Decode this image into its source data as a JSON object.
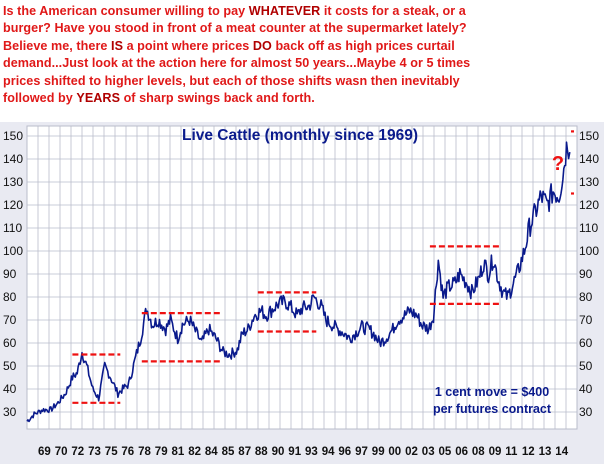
{
  "headline": {
    "lines": [
      [
        {
          "t": "Is the American consumer willing to pay "
        },
        {
          "t": "WHATEVER",
          "b": true
        },
        {
          "t": " it costs for a steak, or a"
        }
      ],
      [
        {
          "t": "burger? Have you stood in front of a meat counter at the supermarket lately?"
        }
      ],
      [
        {
          "t": "Believe me, there "
        },
        {
          "t": "IS",
          "b": true
        },
        {
          "t": " a point where prices "
        },
        {
          "t": "DO",
          "b": true
        },
        {
          "t": " back off as high prices curtail"
        }
      ],
      [
        {
          "t": "demand...Just look at the action here for almost 50 years...Maybe 4 or 5 times"
        }
      ],
      [
        {
          "t": "prices shifted to higher levels, but each of those shifts wasn then inevitably"
        }
      ],
      [
        {
          "t": "followed by "
        },
        {
          "t": "YEARS",
          "b": true
        },
        {
          "t": " of sharp swings back and forth."
        }
      ]
    ]
  },
  "colors": {
    "text": "#e01818",
    "series": "#0a1a8c",
    "range_lines": "#ee1111",
    "grid": "#b9bccb",
    "background": "#e9eaf2"
  },
  "chart_data": {
    "type": "line",
    "title": "Live Cattle (monthly since 1969)",
    "x_tick_labels": [
      "69",
      "70",
      "72",
      "73",
      "75",
      "76",
      "78",
      "79",
      "81",
      "82",
      "84",
      "85",
      "87",
      "88",
      "90",
      "91",
      "93",
      "94",
      "96",
      "97",
      "99",
      "00",
      "02",
      "03",
      "05",
      "06",
      "08",
      "09",
      "11",
      "12",
      "13",
      "14"
    ],
    "y_ticks": [
      30,
      40,
      50,
      60,
      70,
      80,
      90,
      100,
      110,
      120,
      130,
      140,
      150
    ],
    "ylim": [
      25,
      155
    ],
    "xlim": [
      1969,
      2015
    ],
    "grid": true,
    "annotation": {
      "line1": "1 cent move = $400",
      "line2": "per futures contract"
    },
    "question_mark": "?",
    "series": [
      {
        "anchors": [
          [
            1969.0,
            26
          ],
          [
            1969.6,
            29
          ],
          [
            1970.3,
            31
          ],
          [
            1971.0,
            31
          ],
          [
            1971.6,
            34
          ],
          [
            1972.2,
            38
          ],
          [
            1972.8,
            45
          ],
          [
            1973.2,
            47
          ],
          [
            1973.6,
            56
          ],
          [
            1974.0,
            50
          ],
          [
            1974.5,
            40
          ],
          [
            1975.0,
            36
          ],
          [
            1975.5,
            50
          ],
          [
            1976.0,
            45
          ],
          [
            1976.6,
            38
          ],
          [
            1977.0,
            40
          ],
          [
            1977.5,
            42
          ],
          [
            1978.0,
            52
          ],
          [
            1978.5,
            62
          ],
          [
            1979.0,
            75
          ],
          [
            1979.5,
            68
          ],
          [
            1980.0,
            70
          ],
          [
            1980.6,
            66
          ],
          [
            1981.0,
            70
          ],
          [
            1981.6,
            62
          ],
          [
            1982.0,
            68
          ],
          [
            1982.6,
            70
          ],
          [
            1983.0,
            66
          ],
          [
            1983.6,
            60
          ],
          [
            1984.2,
            66
          ],
          [
            1984.8,
            62
          ],
          [
            1985.4,
            56
          ],
          [
            1986.0,
            55
          ],
          [
            1986.6,
            57
          ],
          [
            1987.0,
            64
          ],
          [
            1987.5,
            66
          ],
          [
            1988.0,
            72
          ],
          [
            1988.6,
            74
          ],
          [
            1989.0,
            72
          ],
          [
            1989.6,
            75
          ],
          [
            1990.0,
            77
          ],
          [
            1990.6,
            78
          ],
          [
            1991.0,
            76
          ],
          [
            1991.6,
            72
          ],
          [
            1992.0,
            75
          ],
          [
            1992.6,
            76
          ],
          [
            1993.0,
            80
          ],
          [
            1993.6,
            76
          ],
          [
            1994.0,
            70
          ],
          [
            1994.5,
            68
          ],
          [
            1995.0,
            66
          ],
          [
            1995.6,
            64
          ],
          [
            1996.0,
            62
          ],
          [
            1996.6,
            65
          ],
          [
            1997.0,
            67
          ],
          [
            1997.6,
            66
          ],
          [
            1998.0,
            64
          ],
          [
            1998.5,
            60
          ],
          [
            1999.0,
            62
          ],
          [
            1999.6,
            66
          ],
          [
            2000.0,
            70
          ],
          [
            2000.6,
            72
          ],
          [
            2001.0,
            74
          ],
          [
            2001.6,
            72
          ],
          [
            2002.0,
            68
          ],
          [
            2002.6,
            66
          ],
          [
            2003.0,
            72
          ],
          [
            2003.4,
            96
          ],
          [
            2003.8,
            80
          ],
          [
            2004.2,
            84
          ],
          [
            2004.8,
            86
          ],
          [
            2005.2,
            90
          ],
          [
            2005.8,
            86
          ],
          [
            2006.2,
            82
          ],
          [
            2006.8,
            88
          ],
          [
            2007.2,
            95
          ],
          [
            2007.6,
            90
          ],
          [
            2008.0,
            97
          ],
          [
            2008.4,
            88
          ],
          [
            2008.8,
            82
          ],
          [
            2009.2,
            80
          ],
          [
            2009.6,
            85
          ],
          [
            2010.0,
            90
          ],
          [
            2010.6,
            100
          ],
          [
            2011.0,
            110
          ],
          [
            2011.6,
            118
          ],
          [
            2012.0,
            124
          ],
          [
            2012.5,
            120
          ],
          [
            2013.0,
            126
          ],
          [
            2013.5,
            124
          ],
          [
            2013.9,
            136
          ],
          [
            2014.2,
            148
          ],
          [
            2014.4,
            143
          ]
        ]
      }
    ],
    "range_lines": [
      {
        "x": [
          1972.8,
          1976.8
        ],
        "y": 55
      },
      {
        "x": [
          1972.8,
          1976.8
        ],
        "y": 34
      },
      {
        "x": [
          1978.6,
          1985.3
        ],
        "y": 73
      },
      {
        "x": [
          1978.6,
          1985.3
        ],
        "y": 52
      },
      {
        "x": [
          1988.3,
          1993.2
        ],
        "y": 82
      },
      {
        "x": [
          1988.3,
          1993.2
        ],
        "y": 65
      },
      {
        "x": [
          2002.7,
          2008.6
        ],
        "y": 102
      },
      {
        "x": [
          2002.7,
          2008.6
        ],
        "y": 77
      },
      {
        "x": [
          2014.5,
          2016.0
        ],
        "y": 152
      },
      {
        "x": [
          2014.5,
          2016.0
        ],
        "y": 125
      }
    ]
  }
}
